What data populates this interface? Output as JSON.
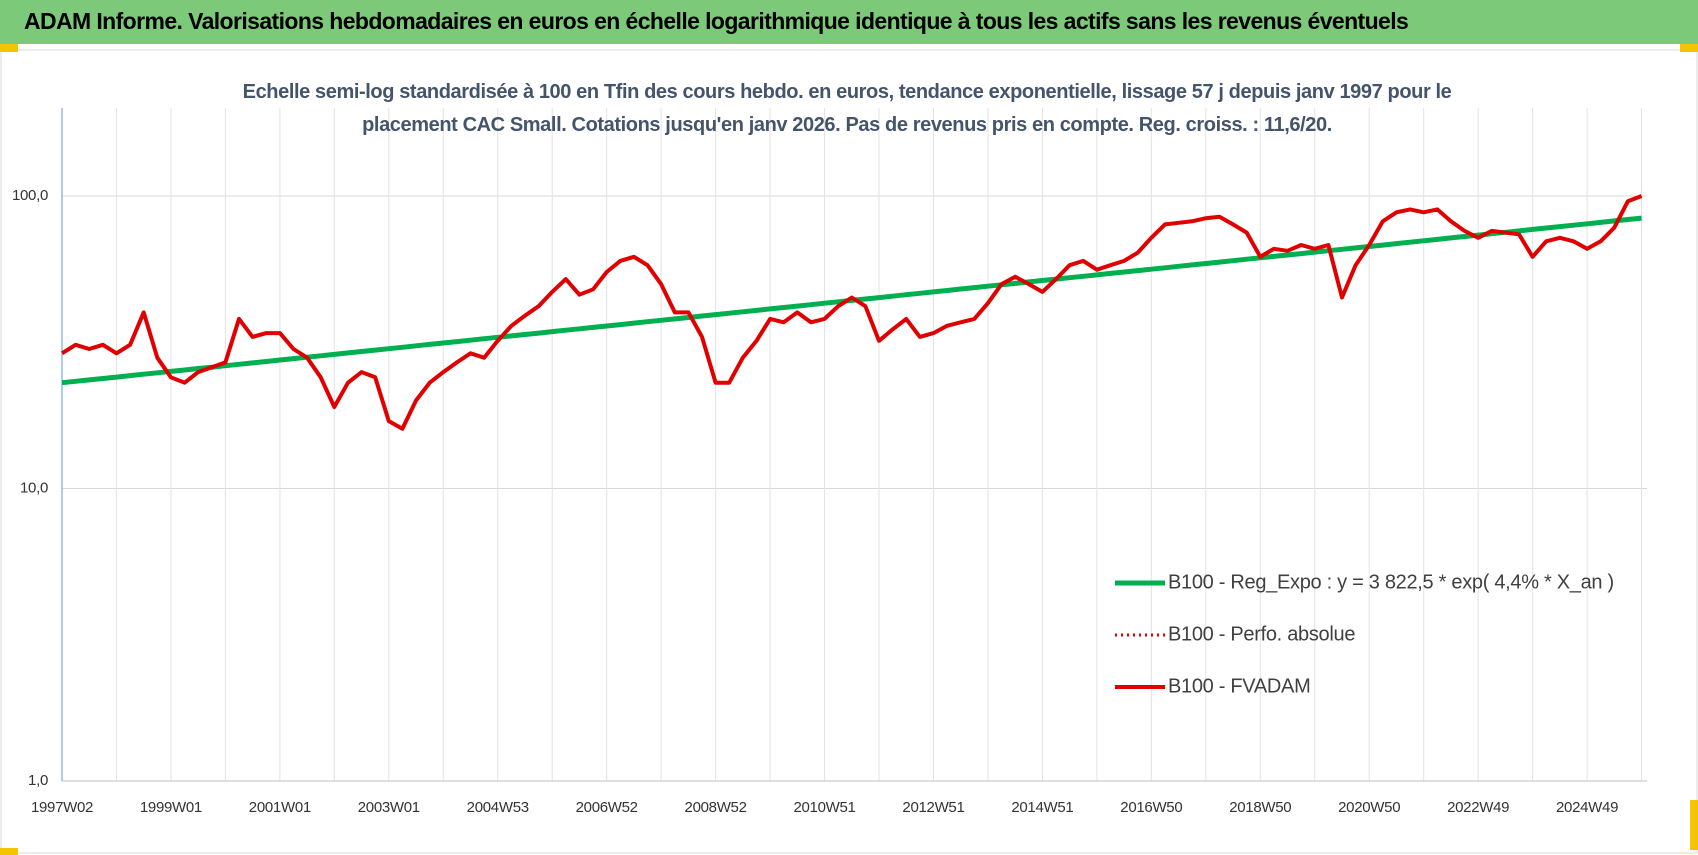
{
  "header": {
    "title": "ADAM Informe. Valorisations hebdomadaires en euros en échelle logarithmique identique à tous les actifs sans les revenus éventuels"
  },
  "chart_data": {
    "type": "line",
    "title": "Echelle semi-log standardisée à 100 en Tfin des cours hebdo. en euros, tendance exponentielle, lissage 57 j depuis janv 1997 pour le placement CAC Small. Cotations jusqu'en janv 2026. Pas de revenus pris en compte. Reg. croiss. : 11,6/20.",
    "log_scale": true,
    "grid": true,
    "legend": "lower right",
    "ylim": [
      1,
      200
    ],
    "yticks": [
      {
        "value": 1,
        "label": "1,0"
      },
      {
        "value": 10,
        "label": "10,0"
      },
      {
        "value": 100,
        "label": "100,0"
      }
    ],
    "categories": [
      "1997W02",
      null,
      null,
      null,
      null,
      null,
      null,
      null,
      "1999W01",
      null,
      null,
      null,
      null,
      null,
      null,
      null,
      "2001W01",
      null,
      null,
      null,
      null,
      null,
      null,
      null,
      "2003W01",
      null,
      null,
      null,
      null,
      null,
      null,
      null,
      "2004W53",
      null,
      null,
      null,
      null,
      null,
      null,
      null,
      "2006W52",
      null,
      null,
      null,
      null,
      null,
      null,
      null,
      "2008W52",
      null,
      null,
      null,
      null,
      null,
      null,
      null,
      "2010W51",
      null,
      null,
      null,
      null,
      null,
      null,
      null,
      "2012W51",
      null,
      null,
      null,
      null,
      null,
      null,
      null,
      "2014W51",
      null,
      null,
      null,
      null,
      null,
      null,
      null,
      "2016W50",
      null,
      null,
      null,
      null,
      null,
      null,
      null,
      "2018W50",
      null,
      null,
      null,
      null,
      null,
      null,
      null,
      "2020W50",
      null,
      null,
      null,
      null,
      null,
      null,
      null,
      "2022W49",
      null,
      null,
      null,
      null,
      null,
      null,
      null,
      "2024W49",
      null,
      null,
      null,
      null
    ],
    "series": [
      {
        "name": "B100 - Reg_Expo : y = 3 822,5 * exp( 4,4% *  X_an )",
        "color": "#00b050",
        "width": 5,
        "dash": "solid",
        "values": [
          23.0,
          23.26,
          23.52,
          23.78,
          24.05,
          24.32,
          24.59,
          24.87,
          25.15,
          25.43,
          25.72,
          26.0,
          26.3,
          26.59,
          26.89,
          27.19,
          27.5,
          27.81,
          28.12,
          28.43,
          28.75,
          29.08,
          29.4,
          29.73,
          30.07,
          30.41,
          30.75,
          31.09,
          31.44,
          31.8,
          32.15,
          32.52,
          32.88,
          33.25,
          33.63,
          34.0,
          34.39,
          34.77,
          35.16,
          35.56,
          35.96,
          36.36,
          36.77,
          37.18,
          37.6,
          38.02,
          38.45,
          38.88,
          39.32,
          39.76,
          40.21,
          40.66,
          41.12,
          41.58,
          42.05,
          42.52,
          43.0,
          43.48,
          43.97,
          44.47,
          44.97,
          45.47,
          45.98,
          46.5,
          47.02,
          47.55,
          48.09,
          48.63,
          49.17,
          49.73,
          50.29,
          50.85,
          51.42,
          52.0,
          52.58,
          53.18,
          53.77,
          54.38,
          54.99,
          55.61,
          56.23,
          56.86,
          57.5,
          58.15,
          58.8,
          59.46,
          60.13,
          60.8,
          61.49,
          62.18,
          62.88,
          63.58,
          64.3,
          65.02,
          65.75,
          66.49,
          67.23,
          67.99,
          68.75,
          69.53,
          70.31,
          71.1,
          71.9,
          72.7,
          73.52,
          74.34,
          75.18,
          76.02,
          76.88,
          77.74,
          78.61,
          79.5,
          80.39,
          81.29,
          82.2,
          83.13,
          84.06
        ]
      },
      {
        "name": "B100 - Perfo. absolue",
        "color": "#e00000",
        "width": 3,
        "dash": "dotted",
        "values": [
          null,
          null,
          null,
          null,
          null,
          null,
          null,
          null,
          null,
          null,
          null,
          null,
          null,
          null,
          null,
          null,
          null,
          null,
          null,
          null,
          null,
          null,
          null,
          null,
          null,
          null,
          null,
          null,
          null,
          null,
          null,
          null,
          null,
          null,
          null,
          null,
          null,
          null,
          null,
          null,
          null,
          null,
          null,
          null,
          null,
          null,
          null,
          null,
          null,
          null,
          null,
          null,
          null,
          null,
          null,
          null,
          null,
          null,
          null,
          null,
          null,
          null,
          null,
          null,
          null,
          null,
          null,
          null,
          null,
          null,
          null,
          null,
          null,
          null,
          null,
          null,
          null,
          null,
          null,
          null,
          null,
          null,
          null,
          null,
          null,
          null,
          null,
          null,
          null,
          null,
          null,
          null,
          null,
          null,
          null,
          null,
          null,
          null,
          null,
          null,
          null,
          null,
          null,
          null,
          null,
          null,
          null,
          null,
          null,
          null,
          null,
          null,
          null,
          null,
          null,
          null,
          null
        ]
      },
      {
        "name": "B100 - FVADAM",
        "color": "#e00000",
        "width": 4,
        "dash": "solid",
        "values": [
          29,
          31,
          30,
          31,
          29,
          31,
          40,
          28,
          24,
          23,
          25,
          26,
          27,
          38,
          33,
          34,
          34,
          30,
          28,
          24,
          19,
          23,
          25,
          24,
          17,
          16,
          20,
          23,
          25,
          27,
          29,
          28,
          32,
          36,
          39,
          42,
          47,
          52,
          46,
          48,
          55,
          60,
          62,
          58,
          50,
          40,
          40,
          33,
          23,
          23,
          28,
          32,
          38,
          37,
          40,
          37,
          38,
          42,
          45,
          42,
          32,
          35,
          38,
          33,
          34,
          36,
          37,
          38,
          43,
          50,
          53,
          50,
          47,
          52,
          58,
          60,
          56,
          58,
          60,
          64,
          72,
          80,
          81,
          82,
          84,
          85,
          80,
          75,
          62,
          66,
          65,
          68,
          66,
          68,
          45,
          58,
          68,
          82,
          88,
          90,
          88,
          90,
          82,
          76,
          72,
          76,
          75,
          74,
          62,
          70,
          72,
          70,
          66,
          70,
          78,
          96,
          100
        ]
      }
    ]
  }
}
